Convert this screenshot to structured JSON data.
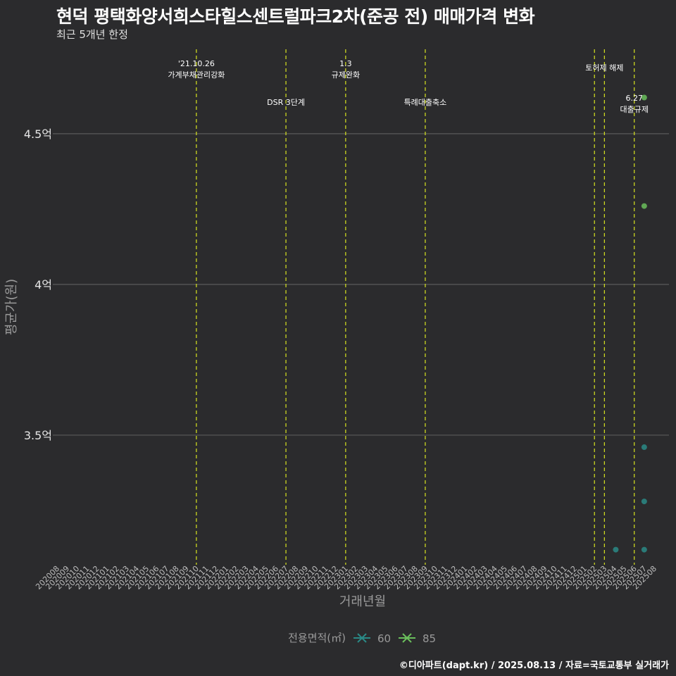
{
  "header": {
    "title": "현덕 평택화양서희스타힐스센트럴파크2차(준공 전) 매매가격 변화",
    "subtitle": "최근 5개년 한정"
  },
  "caption": "©디아파트(dapt.kr) / 2025.08.13 / 자료=국토교통부 실거래가",
  "colors": {
    "background": "#2b2b2d",
    "grid": "#5a5a5a",
    "event_line": "#d8e51f",
    "series_60": "#2a8a86",
    "series_85": "#6abe5c",
    "axis_text": "#bdbdbd"
  },
  "chart_data": {
    "type": "scatter",
    "xlabel": "거래년월",
    "ylabel": "평균가(원)",
    "categories": [
      "202008",
      "202009",
      "202010",
      "202011",
      "202012",
      "202101",
      "202102",
      "202103",
      "202104",
      "202105",
      "202106",
      "202107",
      "202108",
      "202109",
      "202110",
      "202111",
      "202112",
      "202201",
      "202202",
      "202203",
      "202204",
      "202205",
      "202206",
      "202207",
      "202208",
      "202209",
      "202210",
      "202211",
      "202212",
      "202301",
      "202302",
      "202303",
      "202304",
      "202305",
      "202306",
      "202307",
      "202308",
      "202309",
      "202310",
      "202311",
      "202312",
      "202401",
      "202402",
      "202403",
      "202404",
      "202405",
      "202406",
      "202407",
      "202408",
      "202409",
      "202410",
      "202411",
      "202412",
      "202501",
      "202502",
      "202503",
      "202504",
      "202505",
      "202506",
      "202507",
      "202508"
    ],
    "ylim": [
      3.07,
      4.78
    ],
    "yticks": [
      {
        "value": 3.5,
        "label": "3.5억"
      },
      {
        "value": 4.0,
        "label": "4억"
      },
      {
        "value": 4.5,
        "label": "4.5억"
      }
    ],
    "legend": {
      "title": "전용면적(㎡)",
      "position": "bottom",
      "items": [
        {
          "name": "60",
          "color": "#2a8a86"
        },
        {
          "name": "85",
          "color": "#6abe5c"
        }
      ]
    },
    "series": [
      {
        "name": "60",
        "points": [
          {
            "x": "202504",
            "y": 3.12
          },
          {
            "x": "202507",
            "y": 3.12
          },
          {
            "x": "202507",
            "y": 3.28
          },
          {
            "x": "202507",
            "y": 3.46
          }
        ]
      },
      {
        "name": "85",
        "points": [
          {
            "x": "202507",
            "y": 4.26
          },
          {
            "x": "202507",
            "y": 4.62
          }
        ]
      }
    ],
    "events": [
      {
        "x": "202110",
        "lines": [
          "'21.10.26",
          "가계부채관리강화"
        ],
        "tier": "high"
      },
      {
        "x": "202207",
        "lines": [
          "DSR 3단계"
        ],
        "tier": "low"
      },
      {
        "x": "202301",
        "lines": [
          "1.3",
          "규제완화"
        ],
        "tier": "high"
      },
      {
        "x": "202309",
        "lines": [
          "특례대출축소"
        ],
        "tier": "low"
      },
      {
        "x": "202502",
        "lines": [],
        "tier": "high"
      },
      {
        "x": "202503",
        "lines": [
          "토허제 해제"
        ],
        "tier": "high"
      },
      {
        "x": "202506",
        "lines": [
          "6.27",
          "대출규제"
        ],
        "tier": "low"
      }
    ]
  }
}
